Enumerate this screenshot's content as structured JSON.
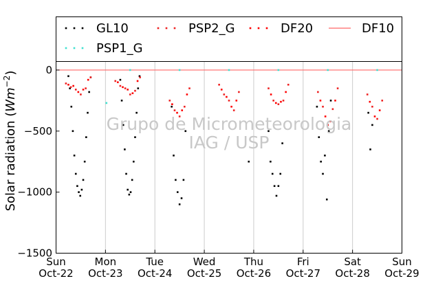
{
  "chart_data": {
    "type": "scatter",
    "ylabel": "Solar radiation ( W m⁻² )",
    "ylabel_math": {
      "prefix": "Solar radiation (",
      "var": "Wm",
      "exp": "−2",
      "suffix": ")"
    },
    "ylim": [
      -1500,
      70
    ],
    "yticks": [
      0,
      -500,
      -1000,
      -1500
    ],
    "ytick_labels": [
      "0",
      "−500",
      "−1000",
      "−1500"
    ],
    "xlim": [
      0,
      7
    ],
    "xticks": [
      {
        "x": 0,
        "day": "Sun",
        "date": "Oct-22"
      },
      {
        "x": 1,
        "day": "Mon",
        "date": "Oct-23"
      },
      {
        "x": 2,
        "day": "Tue",
        "date": "Oct-24"
      },
      {
        "x": 3,
        "day": "Wed",
        "date": "Oct-25"
      },
      {
        "x": 4,
        "day": "Thu",
        "date": "Oct-26"
      },
      {
        "x": 5,
        "day": "Fri",
        "date": "Oct-27"
      },
      {
        "x": 6,
        "day": "Sat",
        "date": "Oct-28"
      },
      {
        "x": 7,
        "day": "Sun",
        "date": "Oct-29"
      }
    ],
    "x_grid": true,
    "legend_position": "top (above plot)",
    "watermark": [
      "Grupo de Micrometeorologia",
      "IAG / USP"
    ],
    "series": [
      {
        "name": "GL10",
        "color": "#000000",
        "marker": "dot",
        "x": [
          0.25,
          0.28,
          0.31,
          0.34,
          0.37,
          0.4,
          0.43,
          0.46,
          0.49,
          0.52,
          0.55,
          0.58,
          0.61,
          0.64,
          0.67,
          0.7,
          1.3,
          1.33,
          1.36,
          1.39,
          1.42,
          1.45,
          1.48,
          1.51,
          1.54,
          1.57,
          1.6,
          1.63,
          1.66,
          1.69,
          2.34,
          2.38,
          2.42,
          2.46,
          2.5,
          2.54,
          2.58,
          2.62,
          3.9,
          4.3,
          4.34,
          4.38,
          4.42,
          4.46,
          4.5,
          4.54,
          4.58,
          5.28,
          5.32,
          5.36,
          5.4,
          5.44,
          5.48,
          5.52,
          5.56,
          6.32,
          6.36,
          6.4
        ],
        "y": [
          -50,
          -150,
          -300,
          -500,
          -700,
          -850,
          -950,
          -1000,
          -1030,
          -980,
          -900,
          -750,
          -550,
          -350,
          -180,
          -60,
          -80,
          -250,
          -450,
          -650,
          -850,
          -980,
          -1020,
          -1000,
          -900,
          -750,
          -550,
          -350,
          -150,
          -50,
          -300,
          -700,
          -900,
          -1000,
          -1100,
          -1050,
          -900,
          -500,
          -750,
          -500,
          -750,
          -850,
          -950,
          -1030,
          -950,
          -850,
          -600,
          -300,
          -550,
          -750,
          -850,
          -700,
          -1060,
          -500,
          -250,
          -350,
          -650,
          -450
        ]
      },
      {
        "name": "PSP2_G",
        "color": "#ee2222",
        "marker": "dot",
        "x": [
          0.2,
          0.3,
          0.4,
          0.5,
          0.6,
          0.7,
          1.2,
          1.3,
          1.4,
          1.5,
          1.6,
          1.7,
          2.3,
          2.4,
          2.5,
          2.6,
          2.7,
          3.3,
          3.4,
          3.5,
          3.6,
          3.7,
          4.3,
          4.4,
          4.5,
          4.6,
          4.7,
          5.3,
          5.4,
          5.5,
          5.6,
          5.7,
          6.3,
          6.4,
          6.5,
          6.6
        ],
        "y": [
          -110,
          -140,
          -160,
          -200,
          -150,
          -60,
          -90,
          -130,
          -150,
          -200,
          -170,
          -60,
          -250,
          -330,
          -380,
          -300,
          -150,
          -120,
          -200,
          -250,
          -330,
          -180,
          -150,
          -250,
          -280,
          -250,
          -120,
          -180,
          -300,
          -450,
          -320,
          -150,
          -200,
          -300,
          -400,
          -250
        ]
      },
      {
        "name": "DF20",
        "color": "#ff0000",
        "marker": "dot",
        "x": [
          0.25,
          0.35,
          0.45,
          0.55,
          0.65,
          1.25,
          1.35,
          1.45,
          1.55,
          1.65,
          2.35,
          2.45,
          2.55,
          2.65,
          3.35,
          3.45,
          3.55,
          3.65,
          4.35,
          4.45,
          4.55,
          4.65,
          5.35,
          5.45,
          5.55,
          5.65,
          6.35,
          6.45,
          6.55
        ],
        "y": [
          -120,
          -130,
          -180,
          -160,
          -80,
          -100,
          -140,
          -160,
          -190,
          -90,
          -280,
          -350,
          -330,
          -200,
          -160,
          -220,
          -300,
          -250,
          -200,
          -270,
          -260,
          -180,
          -250,
          -380,
          -420,
          -250,
          -260,
          -380,
          -330
        ]
      },
      {
        "name": "DF10",
        "color": "#ff6666",
        "marker": "line",
        "x": [
          0,
          1,
          2,
          3,
          4,
          5,
          6,
          7
        ],
        "y": [
          0,
          0,
          0,
          0,
          0,
          0,
          0,
          0
        ]
      },
      {
        "name": "PSP1_G",
        "color": "#40e0d0",
        "marker": "dot",
        "x": [
          1.02,
          1.5,
          2.5,
          3.5,
          4.5,
          5.5,
          6.5
        ],
        "y": [
          -270,
          0,
          0,
          0,
          0,
          0,
          0
        ]
      }
    ]
  }
}
